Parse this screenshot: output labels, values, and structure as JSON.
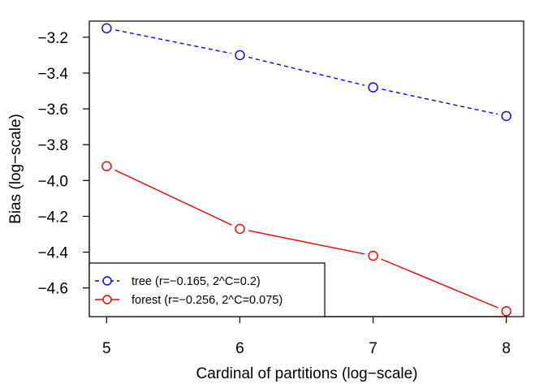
{
  "chart_data": {
    "type": "line",
    "title": "",
    "xlabel": "Cardinal of partitions (log−scale)",
    "ylabel": "Bias (log−scale)",
    "x": [
      5,
      6,
      7,
      8
    ],
    "xticks": [
      "5",
      "6",
      "7",
      "8"
    ],
    "yticks": [
      "−3.2",
      "−3.4",
      "−3.6",
      "−3.8",
      "−4.0",
      "−4.2",
      "−4.4",
      "−4.6"
    ],
    "ytick_values": [
      -3.2,
      -3.4,
      -3.6,
      -3.8,
      -4.0,
      -4.2,
      -4.4,
      -4.6
    ],
    "xlim": [
      4.87,
      8.13
    ],
    "ylim": [
      -4.76,
      -3.11
    ],
    "grid": false,
    "legend_position": "bottom-left",
    "series": [
      {
        "name": "tree (r=−0.165, 2^C=0.2)",
        "values": [
          -3.15,
          -3.3,
          -3.48,
          -3.64
        ],
        "color": "#0000ee",
        "line_style": "dashed",
        "marker": "open-circle"
      },
      {
        "name": "forest (r=−0.256, 2^C=0.075)",
        "values": [
          -3.92,
          -4.27,
          -4.42,
          -4.73
        ],
        "color": "#ee0000",
        "line_style": "solid",
        "marker": "open-circle"
      }
    ]
  }
}
